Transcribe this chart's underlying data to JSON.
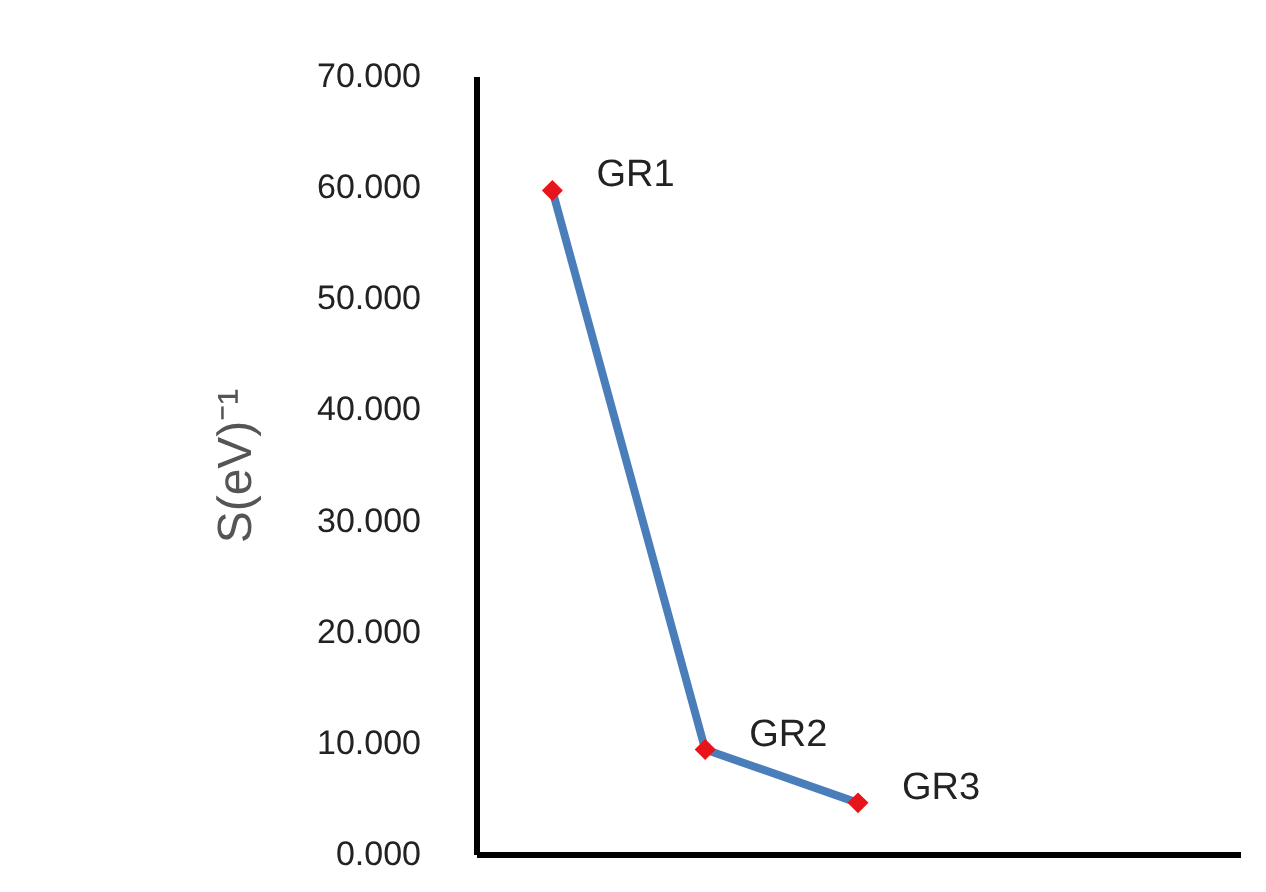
{
  "chart_data": {
    "type": "line",
    "ylabel": "S(eV)⁻¹",
    "categories": [
      null,
      null,
      null,
      null,
      null
    ],
    "series": [
      {
        "color": "#4a7ebb",
        "values": [
          59.7,
          9.4,
          4.6,
          null,
          null
        ],
        "line_style": "solid"
      },
      {
        "type": "scatter",
        "color": "#e8141b",
        "values": [
          59.7,
          9.4,
          4.6,
          null,
          null
        ],
        "marker": "diamond"
      }
    ],
    "ylim": [
      0,
      70
    ],
    "yticks": [
      {
        "value": 0,
        "label": "0.000"
      },
      {
        "value": 10,
        "label": "10.000"
      },
      {
        "value": 20,
        "label": "20.000"
      },
      {
        "value": 30,
        "label": "30.000"
      },
      {
        "value": 40,
        "label": "40.000"
      },
      {
        "value": 50,
        "label": "50.000"
      },
      {
        "value": 60,
        "label": "60.000"
      },
      {
        "value": 70,
        "label": "70.000"
      }
    ],
    "tick_labels": "y",
    "grid": false,
    "legend": false,
    "annotations": [
      "GR1",
      "GR2",
      "GR3"
    ]
  }
}
